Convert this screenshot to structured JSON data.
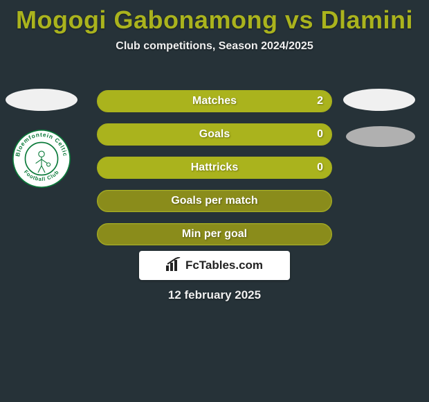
{
  "colors": {
    "background": "#263238",
    "accent": "#aab31d",
    "bar_bg": "#8a8c1b",
    "text_light": "#f0f0f0",
    "white": "#ffffff"
  },
  "header": {
    "title": "Mogogi Gabonamong vs Dlamini",
    "subtitle": "Club competitions, Season 2024/2025"
  },
  "team_left": {
    "outer_ring": "Bloemfontein Celtic",
    "secondary": "Football Club",
    "crest_colors": {
      "ring": "#0b7a3a",
      "inner": "#ffffff"
    }
  },
  "stats": [
    {
      "label": "Matches",
      "right_value": "2",
      "fill_pct": 100
    },
    {
      "label": "Goals",
      "right_value": "0",
      "fill_pct": 100
    },
    {
      "label": "Hattricks",
      "right_value": "0",
      "fill_pct": 100
    },
    {
      "label": "Goals per match",
      "right_value": "",
      "fill_pct": 0
    },
    {
      "label": "Min per goal",
      "right_value": "",
      "fill_pct": 0
    }
  ],
  "branding": {
    "site": "FcTables.com"
  },
  "footer": {
    "date": "12 february 2025"
  },
  "typography": {
    "title_fontsize": 36,
    "subtitle_fontsize": 16,
    "label_fontsize": 16
  }
}
